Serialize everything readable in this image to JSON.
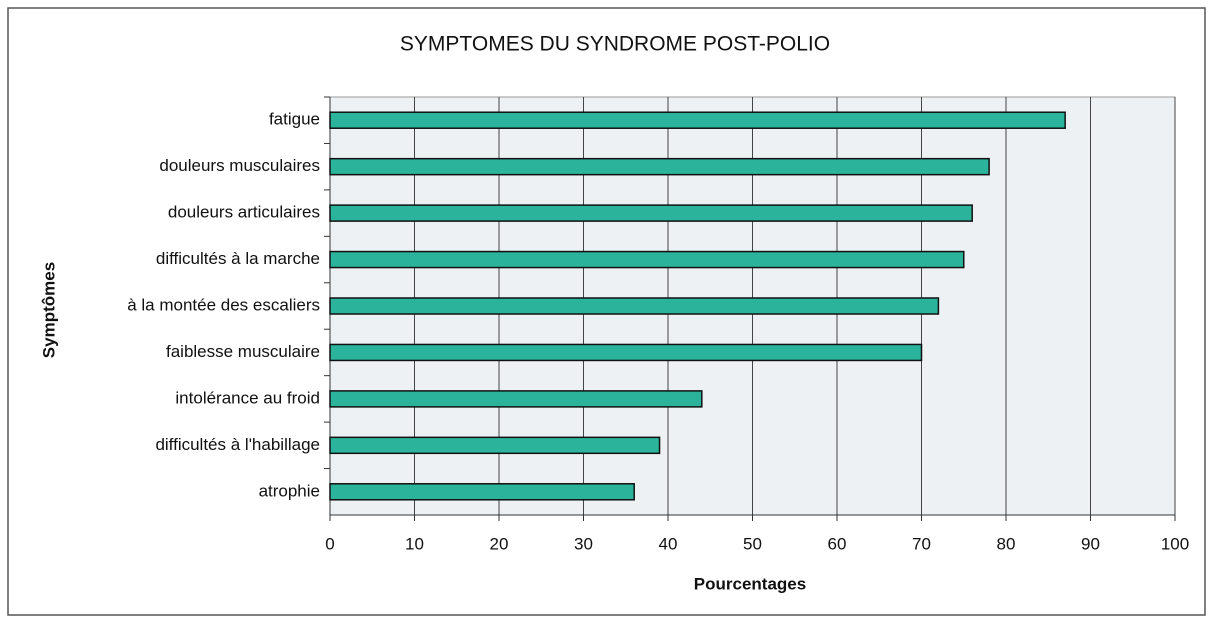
{
  "chart_data": {
    "type": "bar",
    "orientation": "horizontal",
    "title": "SYMPTOMES DU SYNDROME POST-POLIO",
    "x_label": "Pourcentages",
    "y_label": "Symptômes",
    "categories": [
      "fatigue",
      "douleurs musculaires",
      "douleurs articulaires",
      "difficultés à la marche",
      "à la montée des escaliers",
      "faiblesse musculaire",
      "intolérance au froid",
      "difficultés à l'habillage",
      "atrophie"
    ],
    "values": [
      87,
      78,
      76,
      75,
      72,
      70,
      44,
      39,
      36
    ],
    "color": "#2bb39b",
    "xlim": [
      0,
      100
    ],
    "xticks": [
      0,
      10,
      20,
      30,
      40,
      50,
      60,
      70,
      80,
      90,
      100
    ],
    "grid": true
  }
}
